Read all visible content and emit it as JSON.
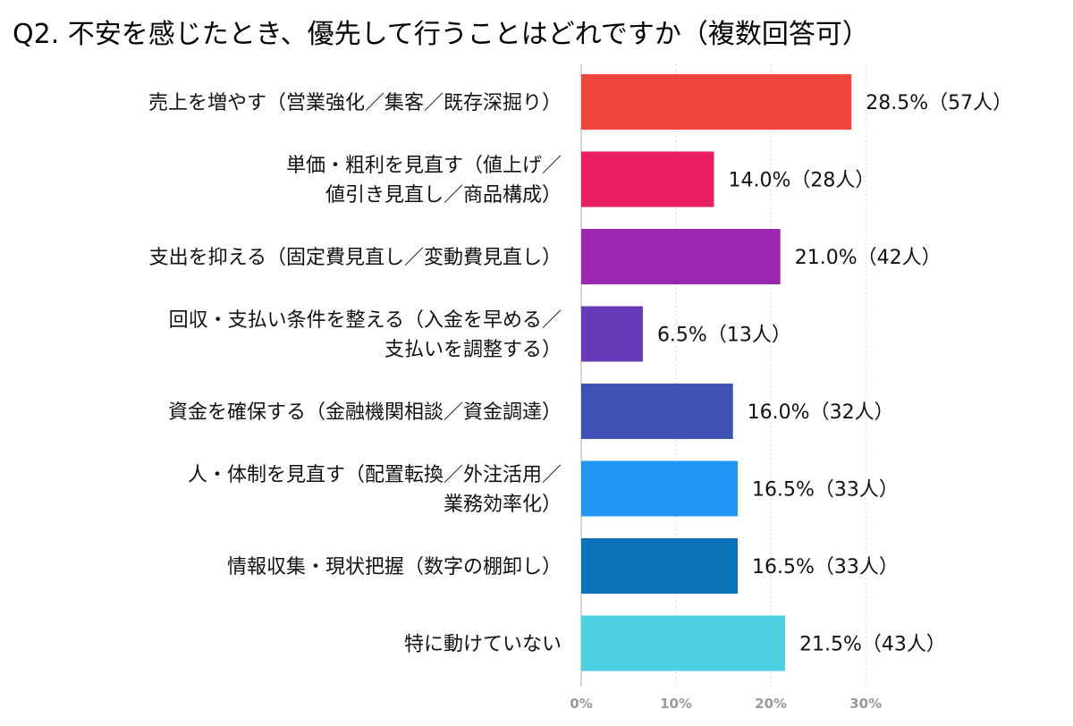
{
  "chart_data": {
    "type": "bar",
    "orientation": "horizontal",
    "title": "Q2. 不安を感じたとき、優先して行うことはどれですか（複数回答可）",
    "categories": [
      [
        "売上を増やす（営業強化／集客／既存深掘り）"
      ],
      [
        "単価・粗利を見直す（値上げ／",
        "値引き見直し／商品構成）"
      ],
      [
        "支出を抑える（固定費見直し／変動費見直し）"
      ],
      [
        "回収・支払い条件を整える（入金を早める／",
        "支払いを調整する）"
      ],
      [
        "資金を確保する（金融機関相談／資金調達）"
      ],
      [
        "人・体制を見直す（配置転換／外注活用／",
        "業務効率化）"
      ],
      [
        "情報収集・現状把握（数字の棚卸し）"
      ],
      [
        "特に動けていない"
      ]
    ],
    "values": [
      28.5,
      14.0,
      21.0,
      6.5,
      16.0,
      16.5,
      16.5,
      21.5
    ],
    "value_labels": [
      "28.5%（57人）",
      "14.0%（28人）",
      "21.0%（42人）",
      "6.5%（13人）",
      "16.0%（32人）",
      "16.5%（33人）",
      "16.5%（33人）",
      "21.5%（43人）"
    ],
    "colors": [
      "#f0453a",
      "#e91e63",
      "#9c27b0",
      "#673ab7",
      "#3f51b5",
      "#2196f3",
      "#0a72b8",
      "#4dd0e1"
    ],
    "xlim": [
      0,
      33
    ],
    "xticks": [
      0,
      10,
      20,
      30
    ],
    "xtick_labels": [
      "0%",
      "10%",
      "20%",
      "30%"
    ],
    "grid": true,
    "legend": "none"
  }
}
